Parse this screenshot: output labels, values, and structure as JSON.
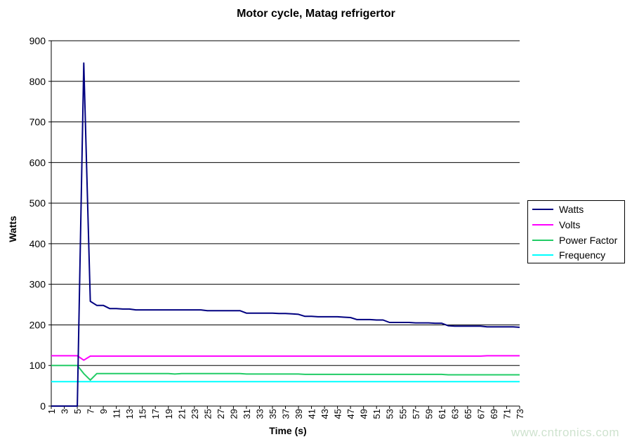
{
  "chart_data": {
    "type": "line",
    "title": "Motor cycle, Matag refrigertor",
    "xlabel": "Time (s)",
    "ylabel": "Watts",
    "ylim": [
      0,
      900
    ],
    "yticks": [
      0,
      100,
      200,
      300,
      400,
      500,
      600,
      700,
      800,
      900
    ],
    "x": [
      1,
      2,
      3,
      4,
      5,
      6,
      7,
      8,
      9,
      10,
      11,
      12,
      13,
      14,
      15,
      16,
      17,
      18,
      19,
      20,
      21,
      22,
      23,
      24,
      25,
      26,
      27,
      28,
      29,
      30,
      31,
      32,
      33,
      34,
      35,
      36,
      37,
      38,
      39,
      40,
      41,
      42,
      43,
      44,
      45,
      46,
      47,
      48,
      49,
      50,
      51,
      52,
      53,
      54,
      55,
      56,
      57,
      58,
      59,
      60,
      61,
      62,
      63,
      64,
      65,
      66,
      67,
      68,
      69,
      70,
      71,
      72,
      73
    ],
    "xticks": [
      1,
      3,
      5,
      7,
      9,
      11,
      13,
      15,
      17,
      19,
      21,
      23,
      25,
      27,
      29,
      31,
      33,
      35,
      37,
      39,
      41,
      43,
      45,
      47,
      49,
      51,
      53,
      55,
      57,
      59,
      61,
      63,
      65,
      67,
      69,
      71,
      73
    ],
    "grid": "horizontal",
    "legend_position": "right",
    "series": [
      {
        "name": "Watts",
        "color": "#000080",
        "values": [
          0,
          0,
          0,
          0,
          0,
          845,
          258,
          248,
          248,
          240,
          240,
          239,
          239,
          237,
          237,
          237,
          237,
          237,
          237,
          237,
          237,
          237,
          237,
          237,
          235,
          235,
          235,
          235,
          235,
          235,
          229,
          229,
          229,
          229,
          229,
          228,
          228,
          227,
          226,
          221,
          221,
          220,
          220,
          220,
          220,
          219,
          218,
          213,
          213,
          213,
          212,
          212,
          206,
          206,
          206,
          206,
          205,
          205,
          205,
          204,
          204,
          198,
          197,
          197,
          197,
          197,
          197,
          195,
          195,
          195,
          195,
          195,
          194
        ]
      },
      {
        "name": "Volts",
        "color": "#ff00ff",
        "values": [
          124,
          124,
          124,
          124,
          124,
          113,
          123,
          123,
          123,
          123,
          123,
          123,
          123,
          123,
          123,
          123,
          123,
          123,
          123,
          123,
          123,
          123,
          123,
          123,
          123,
          123,
          123,
          123,
          123,
          123,
          123,
          123,
          123,
          123,
          123,
          123,
          123,
          123,
          123,
          123,
          123,
          123,
          123,
          123,
          123,
          123,
          123,
          123,
          123,
          123,
          123,
          123,
          123,
          123,
          123,
          123,
          123,
          123,
          123,
          123,
          123,
          123,
          123,
          123,
          123,
          123,
          123,
          124,
          124,
          124,
          124,
          124,
          124
        ]
      },
      {
        "name": "Power Factor",
        "color": "#22cc66",
        "values": [
          100,
          100,
          100,
          100,
          100,
          80,
          64,
          80,
          80,
          80,
          80,
          80,
          80,
          80,
          80,
          80,
          80,
          80,
          80,
          79,
          80,
          80,
          80,
          80,
          80,
          80,
          80,
          80,
          80,
          80,
          79,
          79,
          79,
          79,
          79,
          79,
          79,
          79,
          79,
          78,
          78,
          78,
          78,
          78,
          78,
          78,
          78,
          78,
          78,
          78,
          78,
          78,
          78,
          78,
          78,
          78,
          78,
          78,
          78,
          78,
          78,
          77,
          77,
          77,
          77,
          77,
          77,
          77,
          77,
          77,
          77,
          77,
          77
        ]
      },
      {
        "name": "Frequency",
        "color": "#00ffff",
        "values": [
          60,
          60,
          60,
          60,
          60,
          60,
          60,
          60,
          60,
          60,
          60,
          60,
          60,
          60,
          60,
          60,
          60,
          60,
          60,
          60,
          60,
          60,
          60,
          60,
          60,
          60,
          60,
          60,
          60,
          60,
          60,
          60,
          60,
          60,
          60,
          60,
          60,
          60,
          60,
          60,
          60,
          60,
          60,
          60,
          60,
          60,
          60,
          60,
          60,
          60,
          60,
          60,
          60,
          60,
          60,
          60,
          60,
          60,
          60,
          60,
          60,
          60,
          60,
          60,
          60,
          60,
          60,
          60,
          60,
          60,
          60,
          60,
          60
        ]
      }
    ]
  },
  "watermark": "www.cntronics.com"
}
